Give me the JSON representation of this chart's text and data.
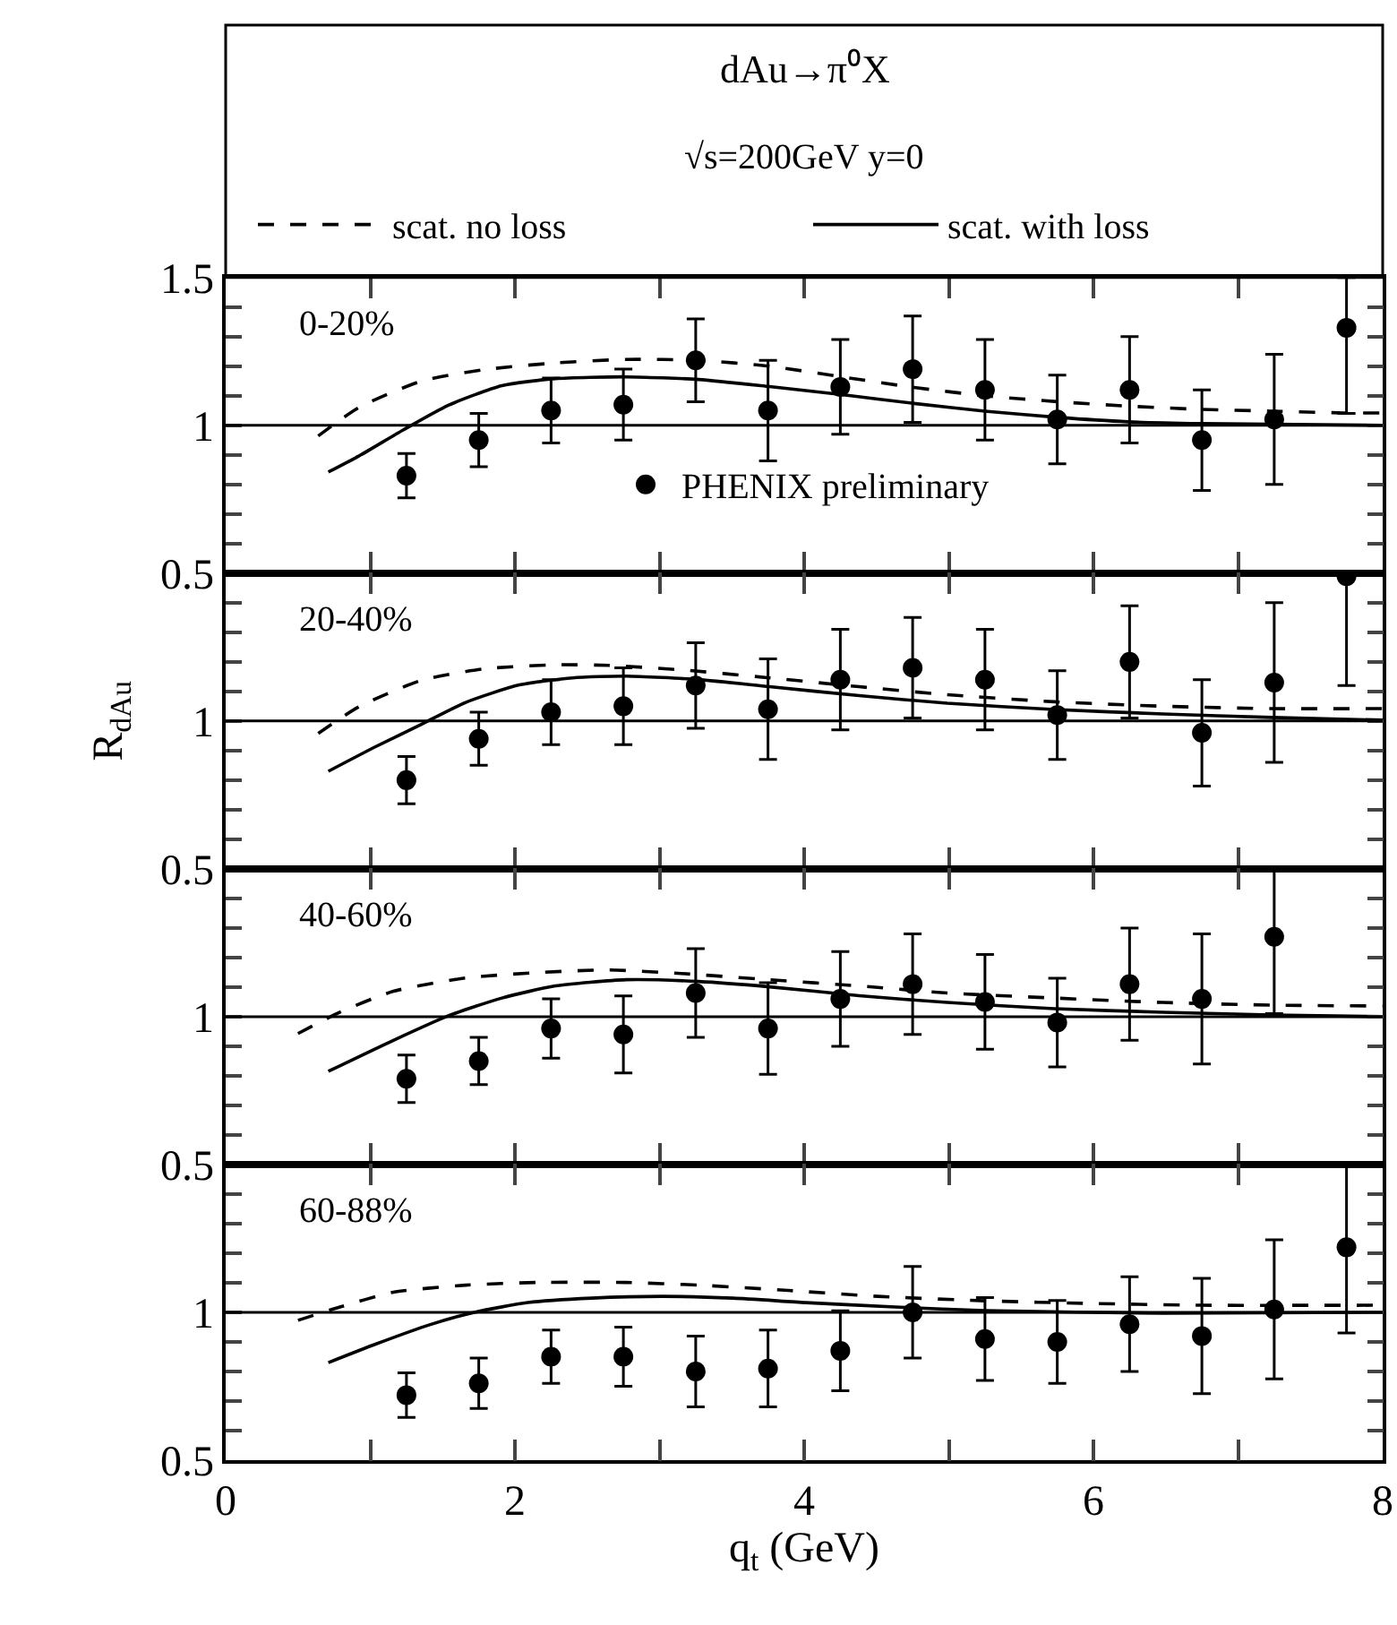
{
  "chart_data": [
    {
      "type": "scatter",
      "title": "dAu→π⁰X",
      "subtitle": "√s=200GeV y=0",
      "annotations": [
        "0-20%"
      ],
      "legend": "top",
      "marker": "circle",
      "tick_labels": "y",
      "x": [
        1.25,
        1.75,
        2.25,
        2.75,
        3.25,
        3.75,
        4.25,
        4.75,
        5.25,
        5.75,
        6.25,
        6.75,
        7.25,
        7.75
      ],
      "xlim": [
        0,
        8
      ],
      "xticks": [
        0,
        {
          "value": 1,
          "label": null
        },
        2,
        {
          "value": 3,
          "label": null
        },
        4,
        {
          "value": 5,
          "label": null
        },
        6,
        {
          "value": 7,
          "label": null
        },
        8
      ],
      "ylim": [
        0.5,
        1.5
      ],
      "yticks": [
        0.5,
        {
          "value": 0.6,
          "label": null
        },
        {
          "value": 0.7,
          "label": null
        },
        {
          "value": 0.8,
          "label": null
        },
        {
          "value": 0.9,
          "label": null
        },
        1,
        {
          "value": 1.1,
          "label": null
        },
        {
          "value": 1.2,
          "label": null
        },
        {
          "value": 1.3,
          "label": null
        },
        {
          "value": 1.4,
          "label": null
        },
        1.5
      ],
      "ref_lines": [
        {
          "axis": "y",
          "value": 1,
          "color": "#000000",
          "line_style": "solid"
        }
      ],
      "series": [
        {
          "name": "scat. no loss",
          "type": "line",
          "marker": "none",
          "line_style": "dashed",
          "color": "#000000",
          "x": [
            0.64,
            0.92,
            1.35,
            1.78,
            2.28,
            2.77,
            3.27,
            3.76,
            4.26,
            4.76,
            5.25,
            5.75,
            6.24,
            6.74,
            7.23,
            7.73,
            8
          ],
          "values": [
            0.964,
            1.06,
            1.149,
            1.188,
            1.211,
            1.223,
            1.22,
            1.2,
            1.164,
            1.128,
            1.1,
            1.08,
            1.065,
            1.054,
            1.048,
            1.042,
            1.042
          ]
        },
        {
          "name": "scat. with loss",
          "type": "line",
          "marker": "none",
          "line_style": "solid",
          "color": "#000000",
          "x": [
            0.71,
            0.92,
            1.23,
            1.54,
            1.91,
            2.28,
            2.77,
            3.27,
            3.76,
            4.26,
            4.76,
            5.25,
            5.75,
            6.24,
            6.74,
            8
          ],
          "values": [
            0.842,
            0.896,
            0.985,
            1.068,
            1.134,
            1.158,
            1.164,
            1.155,
            1.131,
            1.104,
            1.074,
            1.048,
            1.027,
            1.012,
            1.006,
            1.0
          ]
        },
        {
          "name": "PHENIX preliminary",
          "color": "#000000",
          "values": [
            0.83,
            0.95,
            1.05,
            1.07,
            1.22,
            1.05,
            1.13,
            1.19,
            1.12,
            1.02,
            1.12,
            0.95,
            1.02,
            1.33
          ],
          "errors": [
            0.075,
            0.09,
            0.11,
            0.12,
            0.14,
            0.17,
            0.16,
            0.18,
            0.17,
            0.15,
            0.18,
            0.17,
            0.22,
            [
              1.04,
              1.5
            ]
          ]
        }
      ]
    },
    {
      "type": "scatter",
      "ylabel": "R$_{dAu}$",
      "annotations": [
        "20-40%"
      ],
      "marker": "circle",
      "tick_labels": "y",
      "x": [
        1.25,
        1.75,
        2.25,
        2.75,
        3.25,
        3.75,
        4.25,
        4.75,
        5.25,
        5.75,
        6.25,
        6.75,
        7.25,
        7.75
      ],
      "xlim": [
        0,
        8
      ],
      "xticks": [
        0,
        {
          "value": 1,
          "label": null
        },
        2,
        {
          "value": 3,
          "label": null
        },
        4,
        {
          "value": 5,
          "label": null
        },
        6,
        {
          "value": 7,
          "label": null
        },
        8
      ],
      "ylim": [
        0.5,
        1.5
      ],
      "yticks": [
        0.5,
        {
          "value": 0.6,
          "label": null
        },
        {
          "value": 0.7,
          "label": null
        },
        {
          "value": 0.8,
          "label": null
        },
        {
          "value": 0.9,
          "label": null
        },
        1,
        {
          "value": 1.1,
          "label": null
        },
        {
          "value": 1.2,
          "label": null
        },
        {
          "value": 1.3,
          "label": null
        },
        {
          "value": 1.4,
          "label": null
        },
        {
          "value": 1.5,
          "label": null
        }
      ],
      "ref_lines": [
        {
          "axis": "y",
          "value": 1,
          "color": "#000000",
          "line_style": "solid"
        }
      ],
      "series": [
        {
          "type": "line",
          "marker": "none",
          "line_style": "dashed",
          "color": "#000000",
          "x": [
            0.64,
            0.92,
            1.35,
            1.78,
            2.28,
            2.65,
            3.15,
            3.76,
            4.38,
            4.99,
            5.73,
            6.48,
            7.23,
            8
          ],
          "values": [
            0.958,
            1.048,
            1.137,
            1.176,
            1.19,
            1.188,
            1.173,
            1.146,
            1.116,
            1.089,
            1.065,
            1.05,
            1.042,
            1.042
          ]
        },
        {
          "type": "line",
          "marker": "none",
          "line_style": "solid",
          "color": "#000000",
          "x": [
            0.71,
            1.04,
            1.35,
            1.66,
            2.03,
            2.4,
            2.77,
            3.27,
            3.76,
            4.38,
            4.99,
            5.73,
            6.48,
            7.23,
            8
          ],
          "values": [
            0.83,
            0.914,
            0.988,
            1.063,
            1.122,
            1.146,
            1.152,
            1.14,
            1.116,
            1.086,
            1.06,
            1.039,
            1.024,
            1.012,
            1.003
          ]
        },
        {
          "color": "#000000",
          "values": [
            0.8,
            0.94,
            1.03,
            1.05,
            1.12,
            1.04,
            1.14,
            1.18,
            1.14,
            1.02,
            1.2,
            0.96,
            1.13,
            1.49
          ],
          "errors": [
            0.08,
            0.09,
            0.11,
            0.13,
            0.145,
            0.17,
            0.17,
            0.17,
            0.17,
            0.15,
            0.19,
            0.18,
            0.27,
            [
              1.12,
              1.5
            ]
          ]
        }
      ]
    },
    {
      "type": "scatter",
      "annotations": [
        "40-60%"
      ],
      "marker": "circle",
      "tick_labels": "y",
      "xlim": [
        0,
        8
      ],
      "xticks": [
        0,
        {
          "value": 1,
          "label": null
        },
        2,
        {
          "value": 3,
          "label": null
        },
        4,
        {
          "value": 5,
          "label": null
        },
        6,
        {
          "value": 7,
          "label": null
        },
        8
      ],
      "ylim": [
        0.5,
        1.5
      ],
      "yticks": [
        0.5,
        {
          "value": 0.6,
          "label": null
        },
        {
          "value": 0.7,
          "label": null
        },
        {
          "value": 0.8,
          "label": null
        },
        {
          "value": 0.9,
          "label": null
        },
        1,
        {
          "value": 1.1,
          "label": null
        },
        {
          "value": 1.2,
          "label": null
        },
        {
          "value": 1.3,
          "label": null
        },
        {
          "value": 1.4,
          "label": null
        },
        {
          "value": 1.5,
          "label": null
        }
      ],
      "ref_lines": [
        {
          "axis": "y",
          "value": 1,
          "color": "#000000",
          "line_style": "solid"
        }
      ],
      "series": [
        {
          "type": "line",
          "marker": "none",
          "line_style": "dashed",
          "color": "#000000",
          "x": [
            0.5,
            0.79,
            1.16,
            1.66,
            2.15,
            2.65,
            3.15,
            3.76,
            4.38,
            4.99,
            5.73,
            6.48,
            7.23,
            8
          ],
          "values": [
            0.943,
            1.015,
            1.086,
            1.131,
            1.149,
            1.158,
            1.146,
            1.125,
            1.104,
            1.08,
            1.063,
            1.048,
            1.039,
            1.036
          ]
        },
        {
          "type": "line",
          "marker": "none",
          "line_style": "solid",
          "color": "#000000",
          "x": [
            0.71,
            1.16,
            1.54,
            1.91,
            2.28,
            2.77,
            3.27,
            3.76,
            4.38,
            4.99,
            5.73,
            6.48,
            7.23,
            8
          ],
          "values": [
            0.815,
            0.92,
            1.003,
            1.063,
            1.104,
            1.125,
            1.119,
            1.101,
            1.071,
            1.048,
            1.027,
            1.015,
            1.006,
            1.0
          ]
        },
        {
          "color": "#000000",
          "x": [
            1.25,
            1.75,
            2.25,
            2.75,
            3.25,
            3.75,
            4.25,
            4.75,
            5.25,
            5.75,
            6.25,
            6.75,
            7.25
          ],
          "values": [
            0.79,
            0.85,
            0.96,
            0.94,
            1.08,
            0.96,
            1.06,
            1.11,
            1.05,
            0.98,
            1.11,
            1.06,
            1.27
          ],
          "errors": [
            0.08,
            0.08,
            0.1,
            0.13,
            0.15,
            0.155,
            0.16,
            0.17,
            0.16,
            0.15,
            0.19,
            0.22,
            [
              1.01,
              1.5
            ]
          ]
        }
      ]
    },
    {
      "type": "scatter",
      "xlabel": "q$_{t}$ (GeV)",
      "annotations": [
        "60-88%"
      ],
      "marker": "circle",
      "x": [
        1.25,
        1.75,
        2.25,
        2.75,
        3.25,
        3.75,
        4.25,
        4.75,
        5.25,
        5.75,
        6.25,
        6.75,
        7.25,
        7.75
      ],
      "xlim": [
        0,
        8
      ],
      "xticks": [
        0,
        {
          "value": 1,
          "label": null
        },
        2,
        {
          "value": 3,
          "label": null
        },
        4,
        {
          "value": 5,
          "label": null
        },
        6,
        {
          "value": 7,
          "label": null
        },
        8
      ],
      "ylim": [
        0.5,
        1.5
      ],
      "yticks": [
        0.5,
        {
          "value": 0.6,
          "label": null
        },
        {
          "value": 0.7,
          "label": null
        },
        {
          "value": 0.8,
          "label": null
        },
        {
          "value": 0.9,
          "label": null
        },
        1,
        {
          "value": 1.1,
          "label": null
        },
        {
          "value": 1.2,
          "label": null
        },
        {
          "value": 1.3,
          "label": null
        },
        {
          "value": 1.4,
          "label": null
        },
        {
          "value": 1.5,
          "label": null
        }
      ],
      "ref_lines": [
        {
          "axis": "y",
          "value": 1,
          "color": "#000000",
          "line_style": "solid"
        }
      ],
      "series": [
        {
          "type": "line",
          "marker": "none",
          "line_style": "dashed",
          "color": "#000000",
          "x": [
            0.5,
            0.79,
            1.16,
            1.66,
            2.15,
            2.77,
            3.27,
            3.89,
            4.51,
            5.25,
            5.99,
            6.74,
            8
          ],
          "values": [
            0.973,
            1.018,
            1.068,
            1.092,
            1.101,
            1.101,
            1.092,
            1.074,
            1.054,
            1.039,
            1.03,
            1.024,
            1.024
          ]
        },
        {
          "type": "line",
          "marker": "none",
          "line_style": "solid",
          "color": "#000000",
          "x": [
            0.71,
            1.04,
            1.41,
            1.72,
            2.09,
            2.53,
            3.02,
            3.51,
            4.01,
            4.63,
            5.25,
            6.48,
            8
          ],
          "values": [
            0.83,
            0.893,
            0.958,
            1.0,
            1.033,
            1.048,
            1.054,
            1.048,
            1.033,
            1.018,
            1.006,
            0.997,
            1.0
          ]
        },
        {
          "color": "#000000",
          "values": [
            0.72,
            0.76,
            0.85,
            0.85,
            0.8,
            0.81,
            0.87,
            1.0,
            0.91,
            0.9,
            0.96,
            0.92,
            1.01,
            1.22
          ],
          "errors": [
            0.075,
            0.085,
            0.09,
            0.1,
            0.12,
            0.13,
            0.135,
            0.155,
            0.14,
            0.14,
            0.16,
            0.195,
            0.235,
            [
              0.93,
              1.5
            ]
          ]
        }
      ]
    }
  ]
}
